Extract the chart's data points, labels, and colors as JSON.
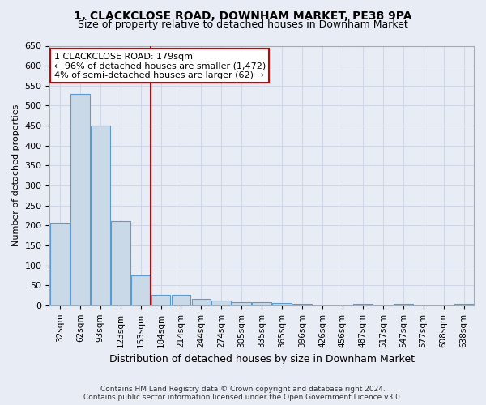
{
  "title": "1, CLACKCLOSE ROAD, DOWNHAM MARKET, PE38 9PA",
  "subtitle": "Size of property relative to detached houses in Downham Market",
  "xlabel": "Distribution of detached houses by size in Downham Market",
  "ylabel": "Number of detached properties",
  "footer1": "Contains HM Land Registry data © Crown copyright and database right 2024.",
  "footer2": "Contains public sector information licensed under the Open Government Licence v3.0.",
  "categories": [
    "32sqm",
    "62sqm",
    "93sqm",
    "123sqm",
    "153sqm",
    "184sqm",
    "214sqm",
    "244sqm",
    "274sqm",
    "305sqm",
    "335sqm",
    "365sqm",
    "396sqm",
    "426sqm",
    "456sqm",
    "487sqm",
    "517sqm",
    "547sqm",
    "577sqm",
    "608sqm",
    "638sqm"
  ],
  "values": [
    207,
    530,
    450,
    210,
    75,
    25,
    25,
    15,
    12,
    8,
    8,
    5,
    3,
    0,
    0,
    3,
    0,
    3,
    0,
    0,
    3
  ],
  "bar_color": "#c9d9e8",
  "bar_edge_color": "#5b9bd5",
  "grid_color": "#d0d8e8",
  "background_color": "#e8edf5",
  "property_line_idx": 5,
  "annotation_text1": "1 CLACKCLOSE ROAD: 179sqm",
  "annotation_text2": "← 96% of detached houses are smaller (1,472)",
  "annotation_text3": "4% of semi-detached houses are larger (62) →",
  "annotation_box_color": "#ffffff",
  "annotation_box_edge": "#cc0000",
  "vline_color": "#cc0000",
  "ylim": [
    0,
    650
  ],
  "yticks": [
    0,
    50,
    100,
    150,
    200,
    250,
    300,
    350,
    400,
    450,
    500,
    550,
    600,
    650
  ],
  "title_fontsize": 10,
  "subtitle_fontsize": 9,
  "ylabel_fontsize": 8,
  "xlabel_fontsize": 9,
  "tick_fontsize": 8,
  "xtick_fontsize": 7.5,
  "footer_fontsize": 6.5,
  "ann_fontsize": 8
}
